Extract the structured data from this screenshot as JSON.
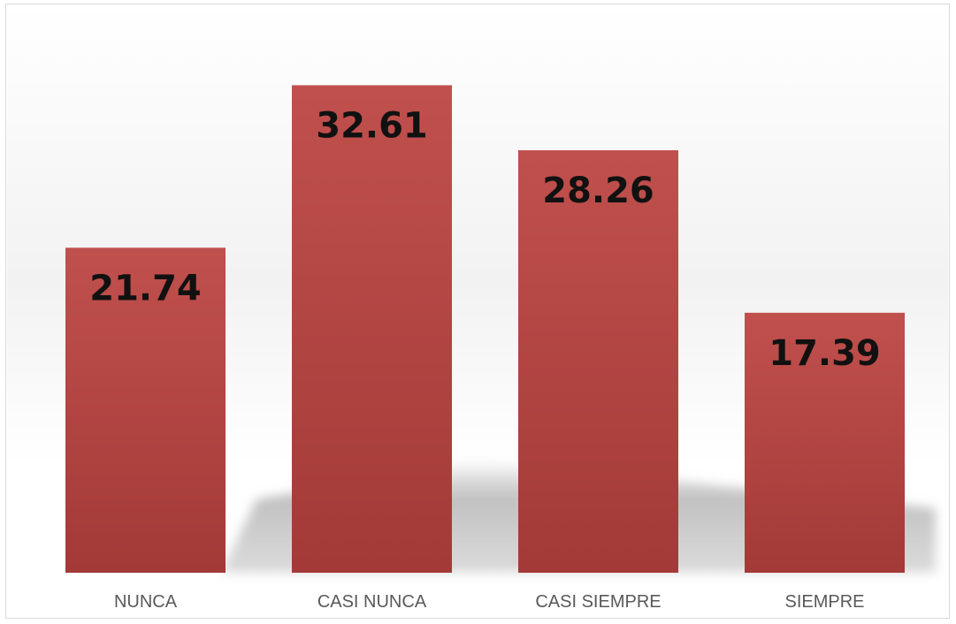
{
  "chart_data": {
    "type": "bar",
    "categories": [
      "NUNCA",
      "CASI NUNCA",
      "CASI SIEMPRE",
      "SIEMPRE"
    ],
    "values": [
      21.74,
      32.61,
      28.26,
      17.39
    ],
    "data_labels": [
      "21.74",
      "32.61",
      "28.26",
      "17.39"
    ],
    "title": "",
    "xlabel": "",
    "ylabel": "",
    "ylim": [
      0,
      35
    ],
    "grid": false,
    "legend": "none",
    "colors": {
      "bar_top": "#c0504d",
      "bar_bottom": "#a33a37",
      "bar_label": "#111111",
      "category_label": "#595959",
      "border": "#d9d9d9"
    }
  }
}
